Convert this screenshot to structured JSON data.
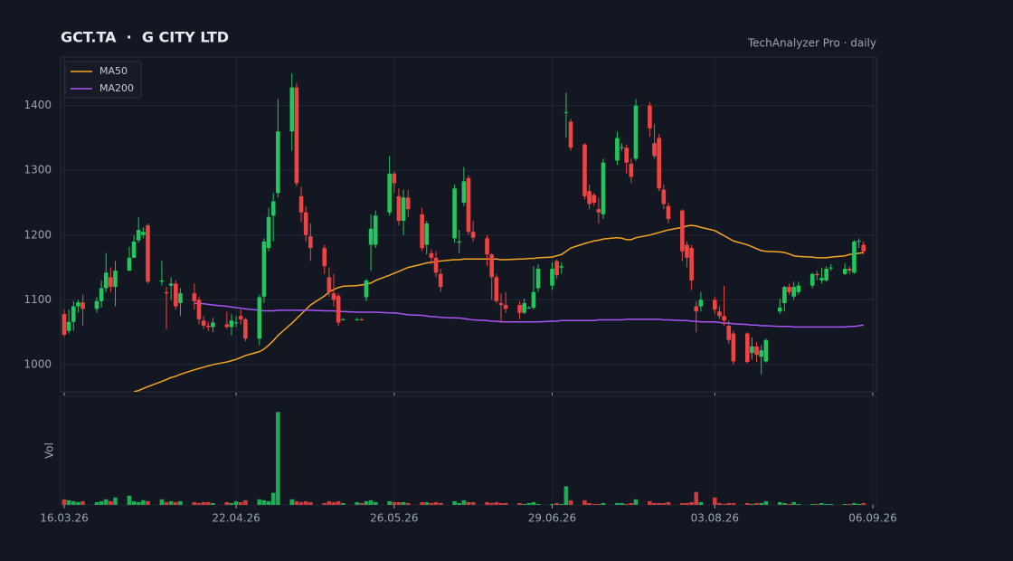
{
  "chart_data": {
    "type": "candlestick",
    "title": "GCT.TA  ·  G CITY LTD",
    "subtitle": "TechAnalyzer Pro · daily",
    "volume_label": "Vol",
    "up_color": "#22c55e",
    "down_color": "#ef4444",
    "grid": true,
    "legend": "top-left",
    "x": [
      "2026-03-16",
      "2026-03-17",
      "2026-03-18",
      "2026-03-19",
      "2026-03-20",
      "2026-03-23",
      "2026-03-24",
      "2026-03-25",
      "2026-03-26",
      "2026-03-27",
      "2026-03-30",
      "2026-03-31",
      "2026-04-01",
      "2026-04-02",
      "2026-04-03",
      "2026-04-06",
      "2026-04-07",
      "2026-04-08",
      "2026-04-09",
      "2026-04-10",
      "2026-04-13",
      "2026-04-14",
      "2026-04-15",
      "2026-04-16",
      "2026-04-17",
      "2026-04-20",
      "2026-04-21",
      "2026-04-22",
      "2026-04-23",
      "2026-04-24",
      "2026-04-27",
      "2026-04-28",
      "2026-04-29",
      "2026-04-30",
      "2026-05-01",
      "2026-05-04",
      "2026-05-05",
      "2026-05-06",
      "2026-05-07",
      "2026-05-08",
      "2026-05-11",
      "2026-05-12",
      "2026-05-13",
      "2026-05-14",
      "2026-05-15",
      "2026-05-18",
      "2026-05-19",
      "2026-05-20",
      "2026-05-21",
      "2026-05-22",
      "2026-05-25",
      "2026-05-26",
      "2026-05-27",
      "2026-05-28",
      "2026-05-29",
      "2026-06-01",
      "2026-06-02",
      "2026-06-03",
      "2026-06-04",
      "2026-06-05",
      "2026-06-08",
      "2026-06-09",
      "2026-06-10",
      "2026-06-11",
      "2026-06-12",
      "2026-06-15",
      "2026-06-16",
      "2026-06-17",
      "2026-06-18",
      "2026-06-19",
      "2026-06-22",
      "2026-06-23",
      "2026-06-24",
      "2026-06-25",
      "2026-06-26",
      "2026-06-29",
      "2026-06-30",
      "2026-07-01",
      "2026-07-02",
      "2026-07-03",
      "2026-07-06",
      "2026-07-07",
      "2026-07-08",
      "2026-07-09",
      "2026-07-10",
      "2026-07-13",
      "2026-07-14",
      "2026-07-15",
      "2026-07-16",
      "2026-07-17",
      "2026-07-20",
      "2026-07-21",
      "2026-07-22",
      "2026-07-23",
      "2026-07-24",
      "2026-07-27",
      "2026-07-28",
      "2026-07-29",
      "2026-07-30",
      "2026-07-31",
      "2026-08-03",
      "2026-08-04",
      "2026-08-05",
      "2026-08-06",
      "2026-08-07",
      "2026-08-10",
      "2026-08-11",
      "2026-08-12",
      "2026-08-13",
      "2026-08-14",
      "2026-08-17",
      "2026-08-18",
      "2026-08-19",
      "2026-08-20",
      "2026-08-21",
      "2026-08-24",
      "2026-08-25",
      "2026-08-26",
      "2026-08-27",
      "2026-08-28",
      "2026-08-31",
      "2026-09-01",
      "2026-09-02",
      "2026-09-03",
      "2026-09-04"
    ],
    "open": [
      1078,
      1052,
      1066,
      1090,
      1096,
      1086,
      1098,
      1118,
      1135,
      1120,
      1145,
      1165,
      1192,
      1200,
      1215,
      1128,
      1112,
      1122,
      1125,
      1095,
      1110,
      1100,
      1068,
      1060,
      1058,
      1062,
      1058,
      1065,
      1075,
      1070,
      1040,
      1105,
      1180,
      1230,
      1265,
      1360,
      1428,
      1260,
      1235,
      1198,
      1180,
      1135,
      1110,
      1106,
      1070,
      1070,
      1070,
      1104,
      1185,
      1185,
      1235,
      1295,
      1260,
      1222,
      1258,
      1232,
      1185,
      1172,
      1165,
      1140,
      1195,
      1190,
      1250,
      1288,
      1205,
      1195,
      1170,
      1135,
      1095,
      1092,
      1092,
      1080,
      1088,
      1088,
      1118,
      1122,
      1160,
      1150,
      1390,
      1375,
      1340,
      1268,
      1262,
      1240,
      1232,
      1315,
      1335,
      1335,
      1310,
      1318,
      1400,
      1342,
      1350,
      1270,
      1245,
      1238,
      1185,
      1180,
      1090,
      1090,
      1100,
      1082,
      1075,
      1060,
      1048,
      1048,
      1018,
      1028,
      1012,
      1005,
      1082,
      1095,
      1120,
      1105,
      1112,
      1122,
      1140,
      1130,
      1130,
      1150,
      1140,
      1148,
      1142,
      1190,
      1185
    ],
    "high": [
      1085,
      1085,
      1098,
      1100,
      1108,
      1104,
      1130,
      1172,
      1150,
      1160,
      1182,
      1200,
      1228,
      1212,
      1218,
      1160,
      1120,
      1135,
      1130,
      1118,
      1125,
      1105,
      1075,
      1066,
      1072,
      1082,
      1078,
      1075,
      1085,
      1072,
      1108,
      1195,
      1242,
      1265,
      1410,
      1450,
      1435,
      1275,
      1245,
      1218,
      1185,
      1150,
      1140,
      1110,
      1072,
      1072,
      1072,
      1132,
      1232,
      1238,
      1322,
      1298,
      1272,
      1270,
      1270,
      1242,
      1222,
      1178,
      1175,
      1148,
      1278,
      1208,
      1305,
      1292,
      1222,
      1200,
      1172,
      1140,
      1110,
      1112,
      1098,
      1102,
      1090,
      1152,
      1155,
      1158,
      1162,
      1158,
      1420,
      1380,
      1342,
      1278,
      1265,
      1258,
      1318,
      1360,
      1342,
      1340,
      1318,
      1410,
      1405,
      1372,
      1356,
      1278,
      1250,
      1240,
      1190,
      1185,
      1098,
      1112,
      1105,
      1090,
      1122,
      1068,
      1052,
      1050,
      1042,
      1035,
      1030,
      1040,
      1102,
      1122,
      1125,
      1128,
      1128,
      1142,
      1145,
      1150,
      1152,
      1155,
      1156,
      1152,
      1192,
      1195,
      1190
    ],
    "low": [
      1042,
      1048,
      1052,
      1080,
      1060,
      1080,
      1088,
      1112,
      1112,
      1090,
      1145,
      1165,
      1188,
      1195,
      1125,
      1122,
      1055,
      1100,
      1085,
      1075,
      1085,
      1062,
      1055,
      1052,
      1050,
      1055,
      1045,
      1058,
      1062,
      1036,
      1030,
      1095,
      1175,
      1190,
      1258,
      1330,
      1275,
      1220,
      1190,
      1160,
      1140,
      1105,
      1090,
      1060,
      1068,
      1068,
      1068,
      1098,
      1145,
      1180,
      1230,
      1265,
      1215,
      1200,
      1228,
      1175,
      1170,
      1155,
      1135,
      1112,
      1188,
      1172,
      1245,
      1200,
      1190,
      1152,
      1100,
      1095,
      1065,
      1080,
      1070,
      1078,
      1086,
      1085,
      1112,
      1115,
      1132,
      1140,
      1350,
      1330,
      1255,
      1240,
      1245,
      1218,
      1225,
      1308,
      1330,
      1295,
      1280,
      1315,
      1352,
      1318,
      1268,
      1240,
      1218,
      1160,
      1150,
      1115,
      1050,
      1082,
      1078,
      1070,
      1060,
      1032,
      1000,
      1002,
      1008,
      1004,
      985,
      1003,
      1078,
      1082,
      1108,
      1100,
      1108,
      1118,
      1130,
      1125,
      1128,
      1145,
      1138,
      1140,
      1140,
      1180,
      1170
    ],
    "close": [
      1046,
      1066,
      1090,
      1096,
      1086,
      1098,
      1118,
      1142,
      1120,
      1145,
      1165,
      1190,
      1208,
      1205,
      1128,
      1130,
      1110,
      1125,
      1090,
      1110,
      1098,
      1070,
      1060,
      1058,
      1065,
      1058,
      1068,
      1065,
      1070,
      1040,
      1104,
      1190,
      1228,
      1252,
      1360,
      1428,
      1280,
      1235,
      1200,
      1180,
      1152,
      1112,
      1100,
      1065,
      1070,
      1070,
      1069,
      1130,
      1210,
      1230,
      1295,
      1280,
      1222,
      1258,
      1240,
      1180,
      1218,
      1165,
      1142,
      1120,
      1272,
      1190,
      1283,
      1205,
      1196,
      1170,
      1135,
      1098,
      1092,
      1086,
      1080,
      1095,
      1088,
      1112,
      1148,
      1148,
      1138,
      1152,
      1390,
      1335,
      1260,
      1248,
      1250,
      1235,
      1312,
      1350,
      1336,
      1312,
      1290,
      1400,
      1365,
      1322,
      1272,
      1248,
      1225,
      1175,
      1165,
      1130,
      1082,
      1100,
      1085,
      1075,
      1068,
      1038,
      1005,
      1004,
      1028,
      1015,
      1022,
      1038,
      1088,
      1120,
      1112,
      1120,
      1122,
      1140,
      1138,
      1134,
      1148,
      1150,
      1148,
      1145,
      1190,
      1191,
      1175
    ],
    "volume": [
      6,
      5,
      4,
      3,
      4,
      3,
      4,
      6,
      4,
      8,
      10,
      4,
      3,
      5,
      4,
      6,
      3,
      4,
      3,
      4,
      3,
      2,
      3,
      3,
      2,
      3,
      2,
      4,
      3,
      5,
      6,
      5,
      4,
      13,
      100,
      6,
      4,
      3,
      4,
      3,
      2,
      4,
      3,
      4,
      2,
      3,
      2,
      4,
      5,
      3,
      4,
      3,
      3,
      3,
      2,
      3,
      3,
      2,
      3,
      2,
      4,
      2,
      5,
      3,
      3,
      3,
      2,
      3,
      2,
      2,
      2,
      1,
      2,
      3,
      1,
      1,
      2,
      1,
      20,
      5,
      5,
      2,
      1,
      1,
      2,
      2,
      2,
      1,
      2,
      6,
      4,
      2,
      2,
      2,
      3,
      2,
      2,
      3,
      14,
      3,
      8,
      2,
      1,
      2,
      2,
      2,
      1,
      2,
      2,
      4,
      3,
      2,
      1,
      3,
      1,
      1,
      1,
      2,
      1,
      1,
      1,
      1,
      2,
      1,
      2
    ],
    "volume_ylim": [
      0,
      115
    ],
    "series": [
      {
        "name": "MA50",
        "color": "#f5a623",
        "values": [
          null,
          null,
          null,
          null,
          null,
          null,
          null,
          null,
          null,
          null,
          null,
          958,
          960,
          963,
          966,
          974,
          977,
          980,
          982,
          985,
          992,
          994,
          996,
          998,
          1000,
          1004,
          1006,
          1008,
          1011,
          1014,
          1020,
          1024,
          1030,
          1037,
          1045,
          1064,
          1071,
          1078,
          1085,
          1092,
          1106,
          1112,
          1116,
          1119,
          1121,
          1122,
          1123,
          1124,
          1126,
          1130,
          1138,
          1141,
          1144,
          1147,
          1150,
          1155,
          1157,
          1158,
          1159,
          1160,
          1162,
          1162,
          1163,
          1163,
          1163,
          1163,
          1163,
          1163,
          1162,
          1162,
          1163,
          1163,
          1164,
          1164,
          1165,
          1166,
          1168,
          1170,
          1175,
          1180,
          1187,
          1189,
          1191,
          1192,
          1194,
          1196,
          1195,
          1193,
          1193,
          1196,
          1200,
          1202,
          1204,
          1206,
          1208,
          1212,
          1214,
          1215,
          1214,
          1212,
          1207,
          1203,
          1199,
          1195,
          1191,
          1185,
          1182,
          1179,
          1176,
          1175,
          1174,
          1173,
          1171,
          1168,
          1167,
          1166,
          1165,
          1165,
          1165,
          1166,
          1168,
          1170,
          1171,
          1172,
          1173
        ]
      },
      {
        "name": "MA200",
        "color": "#a855f7",
        "values": [
          null,
          null,
          null,
          null,
          null,
          null,
          null,
          null,
          null,
          null,
          null,
          null,
          null,
          null,
          null,
          null,
          null,
          null,
          null,
          null,
          1095,
          1094,
          1094,
          1093,
          1092,
          1090,
          1089,
          1088,
          1087,
          1086,
          1084,
          1083,
          1083,
          1083,
          1084,
          1084,
          1084,
          1084,
          1084,
          1084,
          1083,
          1083,
          1083,
          1082,
          1082,
          1081,
          1081,
          1081,
          1081,
          1081,
          1080,
          1080,
          1079,
          1078,
          1077,
          1076,
          1075,
          1074,
          1074,
          1073,
          1072,
          1072,
          1071,
          1070,
          1069,
          1068,
          1067,
          1067,
          1066,
          1066,
          1066,
          1066,
          1066,
          1066,
          1066,
          1067,
          1067,
          1068,
          1068,
          1068,
          1068,
          1068,
          1068,
          1069,
          1069,
          1069,
          1069,
          1070,
          1070,
          1070,
          1070,
          1070,
          1070,
          1069,
          1069,
          1068,
          1068,
          1067,
          1067,
          1066,
          1066,
          1065,
          1064,
          1064,
          1063,
          1062,
          1061,
          1061,
          1060,
          1060,
          1059,
          1059,
          1059,
          1058,
          1058,
          1058,
          1058,
          1058,
          1058,
          1058,
          1058,
          1059,
          1059,
          1060,
          1061
        ]
      }
    ],
    "xlim": [
      "2026-03-16",
      "2026-09-06"
    ],
    "xticks": [
      {
        "value": "2026-03-16",
        "label": "16.03.26"
      },
      {
        "value": "2026-04-22",
        "label": "22.04.26"
      },
      {
        "value": "2026-05-26",
        "label": "26.05.26"
      },
      {
        "value": "2026-06-29",
        "label": "29.06.26"
      },
      {
        "value": "2026-08-03",
        "label": "03.08.26"
      },
      {
        "value": "2026-09-06",
        "label": "06.09.26"
      }
    ],
    "ylim": [
      958,
      1475
    ],
    "yticks": [
      1000,
      1100,
      1200,
      1300,
      1400
    ]
  }
}
